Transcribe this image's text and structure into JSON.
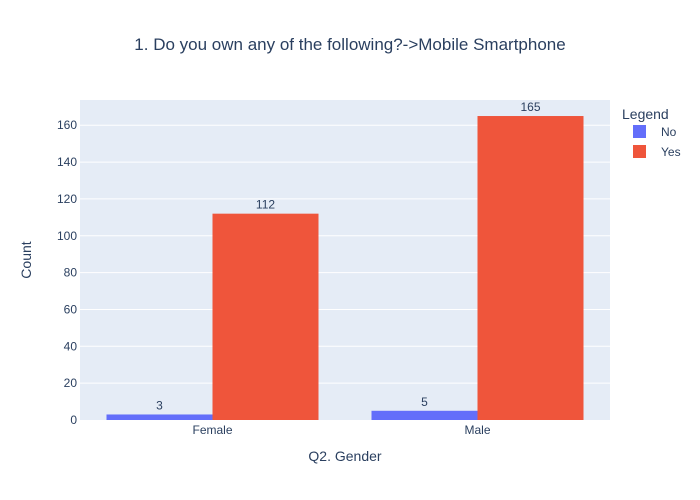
{
  "chart_data": {
    "type": "bar",
    "title": "1. Do you own any of the following?->Mobile Smartphone",
    "xlabel": "Q2. Gender",
    "ylabel": "Count",
    "categories": [
      "Female",
      "Male"
    ],
    "series": [
      {
        "name": "No",
        "values": [
          3,
          5
        ],
        "color": "#636efa"
      },
      {
        "name": "Yes",
        "values": [
          112,
          165
        ],
        "color": "#ef553b"
      }
    ],
    "ylim": [
      0,
      173.7
    ],
    "yticks": [
      0,
      20,
      40,
      60,
      80,
      100,
      120,
      140,
      160
    ],
    "grid": true,
    "plot_background": "#e5ecf6",
    "legend": {
      "title": "Legend",
      "placement": "top-right"
    }
  }
}
